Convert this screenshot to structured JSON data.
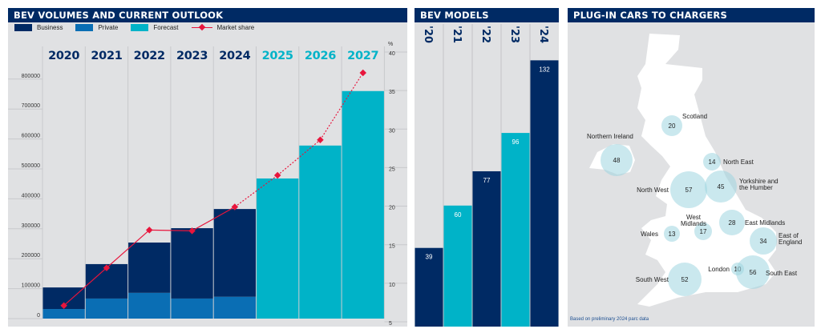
{
  "colors": {
    "business": "#002a64",
    "private": "#0a6eb4",
    "forecast": "#00b3c8",
    "market_share": "#e8153c",
    "panel_bg": "#e0e1e3",
    "bubble": "#9fd6e0"
  },
  "panels": {
    "volumes_title": "BEV VOLUMES AND CURRENT OUTLOOK",
    "models_title": "BEV MODELS",
    "chargers_title": "PLUG-IN CARS TO CHARGERS"
  },
  "legend": {
    "business": "Business",
    "private": "Private",
    "forecast": "Forecast",
    "market_share": "Market share"
  },
  "chart_data": [
    {
      "type": "bar",
      "title": "BEV VOLUMES AND CURRENT OUTLOOK",
      "categories": [
        "2020",
        "2021",
        "2022",
        "2023",
        "2024",
        "2025",
        "2026",
        "2027"
      ],
      "series": [
        {
          "name": "Private",
          "values": [
            32000,
            67000,
            86000,
            67000,
            73000,
            null,
            null,
            null
          ]
        },
        {
          "name": "Business",
          "values": [
            72000,
            115000,
            168000,
            235000,
            293000,
            null,
            null,
            null
          ]
        },
        {
          "name": "Forecast",
          "values": [
            null,
            null,
            null,
            null,
            null,
            468000,
            578000,
            760000
          ]
        },
        {
          "name": "Market share",
          "type": "line",
          "axis": "right",
          "unit": "%",
          "values": [
            7.1,
            12.0,
            16.9,
            16.8,
            19.9,
            24.0,
            28.6,
            37.3
          ]
        }
      ],
      "forecast_from": "2025",
      "y_ticks": [
        "0",
        "100000",
        "200000",
        "300000",
        "400000",
        "500000",
        "600000",
        "700000",
        "800000"
      ],
      "ylim": [
        0,
        800000
      ],
      "y2_label": "%",
      "y2_ticks": [
        "5",
        "10",
        "15",
        "20",
        "25",
        "30",
        "35",
        "40"
      ],
      "y2lim": [
        5,
        40
      ],
      "legend_position": "top-left"
    },
    {
      "type": "bar",
      "title": "BEV MODELS",
      "categories": [
        "'20",
        "'21",
        "'22",
        "'23",
        "'24"
      ],
      "values": [
        39,
        60,
        77,
        96,
        132
      ],
      "labels": [
        "39",
        "60",
        "77",
        "96",
        "132"
      ]
    },
    {
      "type": "bubble-map",
      "title": "PLUG-IN CARS TO CHARGERS",
      "regions": [
        {
          "name": "Scotland",
          "value": 20
        },
        {
          "name": "Northern Ireland",
          "value": 48
        },
        {
          "name": "North East",
          "value": 14
        },
        {
          "name": "North West",
          "value": 57
        },
        {
          "name": "Yorkshire and the Humber",
          "value": 45
        },
        {
          "name": "East Midlands",
          "value": 28
        },
        {
          "name": "West Midlands",
          "value": 17
        },
        {
          "name": "Wales",
          "value": 13
        },
        {
          "name": "East of England",
          "value": 34
        },
        {
          "name": "London",
          "value": 10
        },
        {
          "name": "South East",
          "value": 56
        },
        {
          "name": "South West",
          "value": 52
        }
      ],
      "footnote": "Based on preliminary 2024 parc data"
    }
  ]
}
